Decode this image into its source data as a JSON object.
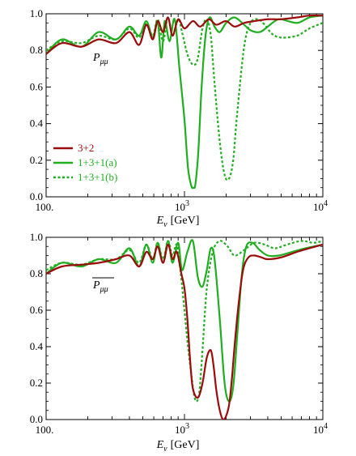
{
  "colors": {
    "s32": "#9b0b0b",
    "s131": "#1fae1f",
    "frame": "#000000"
  },
  "legend": {
    "labels": [
      "3+2",
      "1+3+1(a)",
      "1+3+1(b)"
    ],
    "position": "lower-left of top panel"
  },
  "chart_data": [
    {
      "type": "line",
      "panel": "top",
      "inset_label": {
        "symbol": "P",
        "subscript": "μμ"
      },
      "xlabel": {
        "symbol": "E",
        "subscript": "ν",
        "unit": "[GeV]"
      },
      "xscale": "log",
      "xlim": [
        100,
        10000
      ],
      "ylim": [
        0,
        1.0
      ],
      "yticks": [
        "0.0",
        "0.2",
        "0.4",
        "0.6",
        "0.8",
        "1.0"
      ],
      "xticks": [
        {
          "value": 100,
          "label": "100.",
          "exp": ""
        },
        {
          "value": 1000,
          "label": "10",
          "exp": "3"
        },
        {
          "value": 10000,
          "label": "10",
          "exp": "4"
        }
      ],
      "grid": false,
      "series": [
        {
          "name": "3+2",
          "style": "solid",
          "color": "#9b0b0b",
          "x": [
            100,
            130,
            180,
            240,
            320,
            400,
            470,
            530,
            590,
            640,
            700,
            760,
            820,
            900,
            1000,
            1150,
            1300,
            1500,
            1700,
            2000,
            2300,
            2700,
            3200,
            4000,
            5000,
            6500,
            8000,
            10000
          ],
          "y": [
            0.78,
            0.84,
            0.82,
            0.86,
            0.84,
            0.9,
            0.83,
            0.94,
            0.86,
            0.96,
            0.9,
            0.98,
            0.88,
            0.97,
            0.92,
            0.96,
            0.93,
            0.97,
            0.94,
            0.96,
            0.93,
            0.95,
            0.96,
            0.97,
            0.97,
            0.98,
            0.99,
            0.99
          ]
        },
        {
          "name": "1+3+1(a)",
          "style": "solid",
          "color": "#1fae1f",
          "x": [
            100,
            130,
            180,
            240,
            320,
            400,
            470,
            530,
            590,
            640,
            680,
            720,
            780,
            850,
            920,
            1000,
            1060,
            1120,
            1160,
            1200,
            1260,
            1330,
            1420,
            1520,
            1650,
            1800,
            2000,
            2300,
            2700,
            3000,
            3500,
            4000,
            4500,
            5000,
            6500,
            8000,
            10000
          ],
          "y": [
            0.78,
            0.86,
            0.82,
            0.9,
            0.86,
            0.93,
            0.88,
            0.96,
            0.87,
            0.96,
            0.76,
            0.96,
            0.85,
            0.97,
            0.7,
            0.42,
            0.16,
            0.06,
            0.05,
            0.07,
            0.25,
            0.6,
            0.88,
            0.98,
            0.93,
            0.9,
            0.95,
            0.98,
            0.94,
            0.91,
            0.9,
            0.93,
            0.96,
            0.97,
            0.95,
            0.98,
            0.99
          ]
        },
        {
          "name": "1+3+1(b)",
          "style": "dotted",
          "color": "#1fae1f",
          "x": [
            100,
            130,
            180,
            240,
            320,
            400,
            470,
            530,
            590,
            640,
            700,
            760,
            820,
            900,
            960,
            1030,
            1100,
            1180,
            1250,
            1350,
            1450,
            1550,
            1650,
            1800,
            1950,
            2100,
            2250,
            2400,
            2700,
            3000,
            3400,
            3800,
            4300,
            5000,
            6500,
            8000,
            10000
          ],
          "y": [
            0.8,
            0.85,
            0.84,
            0.88,
            0.86,
            0.92,
            0.87,
            0.95,
            0.88,
            0.97,
            0.85,
            0.98,
            0.88,
            0.97,
            0.9,
            0.8,
            0.74,
            0.72,
            0.76,
            0.92,
            0.97,
            0.88,
            0.62,
            0.3,
            0.12,
            0.1,
            0.2,
            0.45,
            0.82,
            0.95,
            0.97,
            0.94,
            0.89,
            0.87,
            0.88,
            0.92,
            0.95
          ]
        }
      ]
    },
    {
      "type": "line",
      "panel": "bottom",
      "inset_label": {
        "symbol": "P",
        "subscript": "μμ",
        "overbar": true
      },
      "xlabel": {
        "symbol": "E",
        "subscript": "ν",
        "unit": "[GeV]"
      },
      "xscale": "log",
      "xlim": [
        100,
        10000
      ],
      "ylim": [
        0,
        1.0
      ],
      "yticks": [
        "0.0",
        "0.2",
        "0.4",
        "0.6",
        "0.8",
        "1.0"
      ],
      "xticks": [
        {
          "value": 100,
          "label": "100.",
          "exp": ""
        },
        {
          "value": 1000,
          "label": "10",
          "exp": "3"
        },
        {
          "value": 10000,
          "label": "10",
          "exp": "4"
        }
      ],
      "grid": false,
      "series": [
        {
          "name": "3+2",
          "style": "solid",
          "color": "#9b0b0b",
          "x": [
            100,
            130,
            180,
            240,
            320,
            400,
            470,
            530,
            590,
            640,
            700,
            760,
            820,
            880,
            950,
            1000,
            1050,
            1100,
            1150,
            1250,
            1350,
            1450,
            1550,
            1620,
            1700,
            1800,
            1900,
            2000,
            2100,
            2200,
            2300,
            2450,
            2650,
            2900,
            3200,
            3600,
            4000,
            5000,
            6500,
            8000,
            10000
          ],
          "y": [
            0.8,
            0.84,
            0.85,
            0.86,
            0.88,
            0.9,
            0.84,
            0.92,
            0.88,
            0.95,
            0.86,
            0.96,
            0.88,
            0.92,
            0.8,
            0.72,
            0.55,
            0.32,
            0.17,
            0.12,
            0.2,
            0.34,
            0.38,
            0.3,
            0.16,
            0.05,
            0.0,
            0.02,
            0.08,
            0.22,
            0.4,
            0.62,
            0.82,
            0.89,
            0.9,
            0.89,
            0.88,
            0.89,
            0.92,
            0.94,
            0.96
          ]
        },
        {
          "name": "1+3+1(a)",
          "style": "solid",
          "color": "#1fae1f",
          "x": [
            100,
            130,
            180,
            240,
            320,
            400,
            470,
            530,
            590,
            640,
            700,
            760,
            820,
            900,
            960,
            1050,
            1150,
            1250,
            1350,
            1450,
            1550,
            1650,
            1800,
            1950,
            2100,
            2250,
            2400,
            2600,
            2800,
            3100,
            3500,
            4000,
            4800,
            6000,
            7500,
            10000
          ],
          "y": [
            0.8,
            0.86,
            0.84,
            0.88,
            0.86,
            0.94,
            0.84,
            0.96,
            0.86,
            0.97,
            0.86,
            0.98,
            0.86,
            0.97,
            0.82,
            0.92,
            0.98,
            0.78,
            0.73,
            0.82,
            0.94,
            0.88,
            0.55,
            0.2,
            0.1,
            0.18,
            0.45,
            0.8,
            0.95,
            0.97,
            0.93,
            0.9,
            0.9,
            0.92,
            0.94,
            0.96
          ]
        },
        {
          "name": "1+3+1(b)",
          "style": "dotted",
          "color": "#1fae1f",
          "x": [
            100,
            130,
            180,
            240,
            320,
            400,
            470,
            530,
            590,
            640,
            700,
            760,
            820,
            880,
            940,
            1000,
            1060,
            1120,
            1170,
            1220,
            1280,
            1350,
            1450,
            1600,
            1800,
            2050,
            2300,
            2700,
            3200,
            3800,
            4500,
            5500,
            7000,
            8500,
            10000
          ],
          "y": [
            0.82,
            0.86,
            0.85,
            0.88,
            0.88,
            0.93,
            0.86,
            0.96,
            0.88,
            0.97,
            0.88,
            0.98,
            0.9,
            0.96,
            0.8,
            0.6,
            0.4,
            0.25,
            0.14,
            0.1,
            0.15,
            0.38,
            0.72,
            0.92,
            0.98,
            0.95,
            0.9,
            0.93,
            0.97,
            0.96,
            0.94,
            0.96,
            0.98,
            0.97,
            0.98
          ]
        }
      ]
    }
  ]
}
